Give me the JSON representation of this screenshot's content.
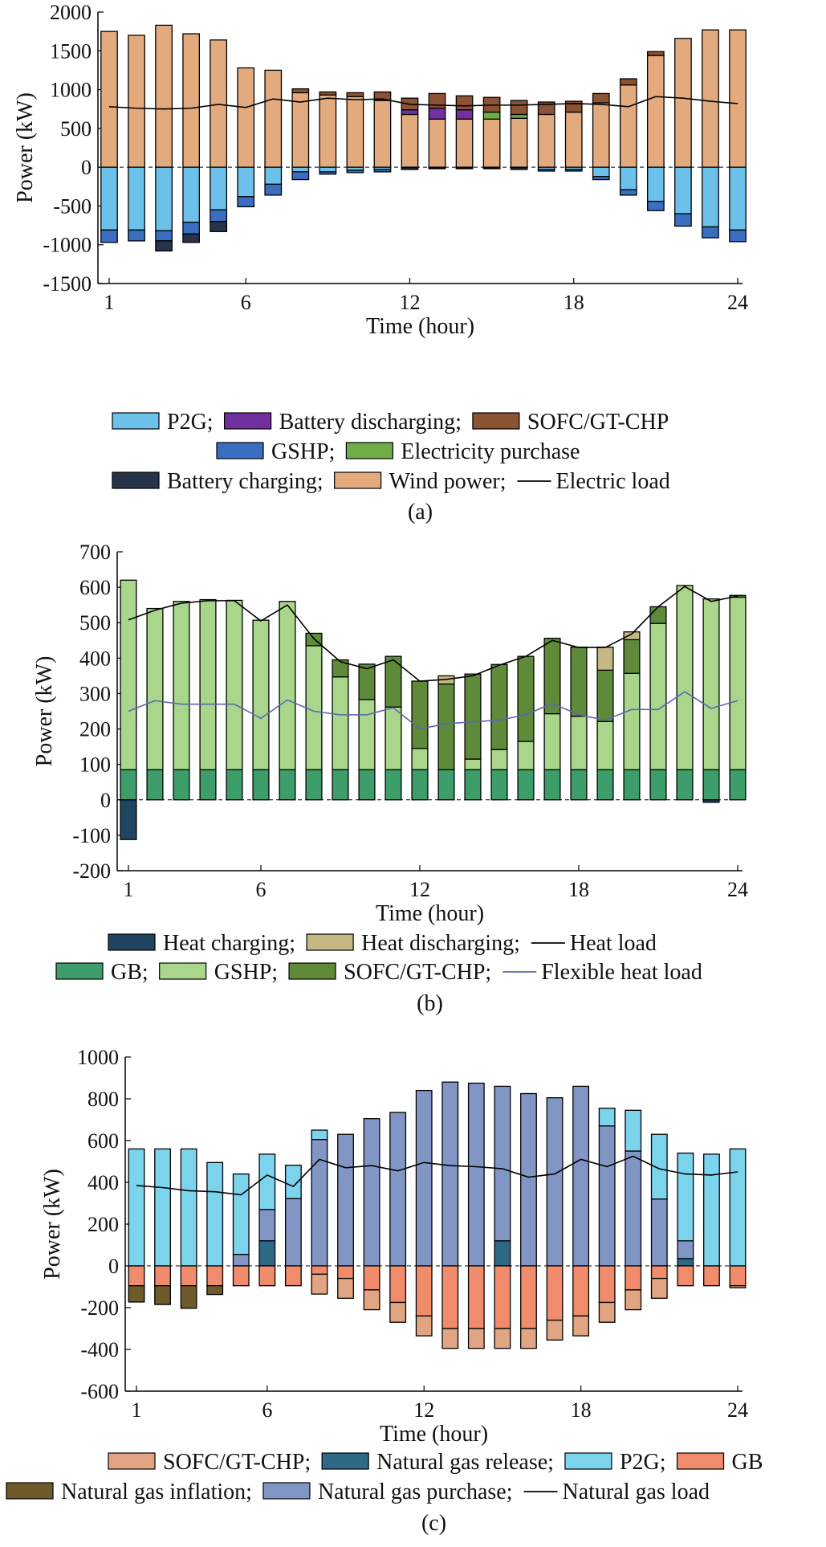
{
  "chart_data": [
    {
      "id": "a",
      "type": "bar",
      "stacked": true,
      "caption": "(a)",
      "xlabel": "Time (hour)",
      "ylabel": "Power (kW)",
      "ylim": [
        -1500,
        2000
      ],
      "yticks": [
        -1500,
        -1000,
        -500,
        0,
        500,
        1000,
        1500,
        2000
      ],
      "xticks": [
        1,
        6,
        12,
        18,
        24
      ],
      "x": [
        1,
        2,
        3,
        4,
        5,
        6,
        7,
        8,
        9,
        10,
        11,
        12,
        13,
        14,
        15,
        16,
        17,
        18,
        19,
        20,
        21,
        22,
        23,
        24
      ],
      "series": [
        {
          "name": "Wind power",
          "color": "#E3AA7D",
          "values": [
            1750,
            1700,
            1830,
            1720,
            1640,
            1280,
            1250,
            960,
            930,
            910,
            860,
            680,
            620,
            620,
            620,
            630,
            680,
            710,
            830,
            1060,
            1440,
            1660,
            1770,
            1770
          ]
        },
        {
          "name": "Electricity purchase",
          "color": "#70AD47",
          "values": [
            0,
            0,
            0,
            0,
            0,
            0,
            0,
            0,
            0,
            0,
            0,
            0,
            0,
            0,
            90,
            50,
            0,
            0,
            0,
            0,
            0,
            0,
            0,
            0
          ]
        },
        {
          "name": "Battery discharging",
          "color": "#7030A0",
          "values": [
            0,
            0,
            0,
            0,
            0,
            0,
            0,
            0,
            0,
            0,
            0,
            60,
            140,
            120,
            0,
            0,
            0,
            0,
            0,
            0,
            0,
            0,
            0,
            0
          ]
        },
        {
          "name": "SOFC/GT-CHP",
          "color": "#8B5233",
          "values": [
            0,
            0,
            0,
            0,
            0,
            0,
            0,
            50,
            40,
            50,
            110,
            150,
            190,
            180,
            190,
            180,
            160,
            140,
            120,
            80,
            50,
            0,
            0,
            0
          ]
        },
        {
          "name": "P2G",
          "color": "#6BC1EA",
          "values": [
            -810,
            -810,
            -820,
            -710,
            -550,
            -380,
            -220,
            -60,
            -60,
            -40,
            -30,
            -10,
            -10,
            -10,
            -10,
            -10,
            -30,
            -30,
            -120,
            -290,
            -440,
            -600,
            -770,
            -810
          ]
        },
        {
          "name": "GSHP",
          "color": "#3A6EC1",
          "values": [
            -160,
            -140,
            -130,
            -150,
            -150,
            -130,
            -140,
            -100,
            -30,
            -30,
            -30,
            -20,
            -10,
            -10,
            -10,
            -20,
            -20,
            -20,
            -40,
            -70,
            -120,
            -160,
            -140,
            -150
          ]
        },
        {
          "name": "Battery charging",
          "color": "#26344A",
          "values": [
            0,
            0,
            -130,
            -110,
            -130,
            0,
            0,
            0,
            0,
            0,
            0,
            0,
            0,
            0,
            0,
            0,
            0,
            0,
            0,
            0,
            0,
            0,
            0,
            0
          ]
        }
      ],
      "line": {
        "name": "Electric load",
        "color": "#000000",
        "values": [
          780,
          760,
          750,
          760,
          810,
          770,
          880,
          840,
          890,
          870,
          880,
          810,
          800,
          790,
          800,
          800,
          810,
          820,
          810,
          780,
          910,
          890,
          850,
          820
        ]
      },
      "legend": [
        [
          "P2G;",
          "Battery discharging;",
          "SOFC/GT-CHP"
        ],
        [
          "GSHP;",
          "Electricity purchase"
        ],
        [
          "Battery charging;",
          "Wind power;",
          "Electric load"
        ]
      ]
    },
    {
      "id": "b",
      "type": "bar",
      "stacked": true,
      "caption": "(b)",
      "xlabel": "Time (hour)",
      "ylabel": "Power (kW)",
      "ylim": [
        -200,
        700
      ],
      "yticks": [
        -200,
        -100,
        0,
        100,
        200,
        300,
        400,
        500,
        600,
        700
      ],
      "xticks": [
        1,
        6,
        12,
        18,
        24
      ],
      "x": [
        1,
        2,
        3,
        4,
        5,
        6,
        7,
        8,
        9,
        10,
        11,
        12,
        13,
        14,
        15,
        16,
        17,
        18,
        19,
        20,
        21,
        22,
        23,
        24
      ],
      "series": [
        {
          "name": "GB",
          "color": "#3E9E6B",
          "values": [
            85,
            85,
            85,
            85,
            85,
            85,
            85,
            85,
            85,
            85,
            85,
            85,
            85,
            85,
            85,
            85,
            85,
            85,
            85,
            85,
            85,
            85,
            85,
            85
          ]
        },
        {
          "name": "GSHP",
          "color": "#A9D68B",
          "values": [
            535,
            455,
            475,
            480,
            478,
            422,
            475,
            350,
            262,
            198,
            177,
            60,
            0,
            30,
            57,
            80,
            158,
            151,
            136,
            272,
            413,
            520,
            482,
            487
          ]
        },
        {
          "name": "SOFC/GT-CHP",
          "color": "#5E8A3A",
          "values": [
            0,
            0,
            0,
            0,
            0,
            0,
            0,
            35,
            48,
            100,
            143,
            190,
            242,
            240,
            240,
            240,
            213,
            195,
            145,
            95,
            47,
            0,
            0,
            5
          ]
        },
        {
          "name": "Heat discharging",
          "color": "#C6B884",
          "values": [
            0,
            0,
            0,
            0,
            0,
            0,
            0,
            0,
            0,
            0,
            0,
            0,
            23,
            0,
            0,
            0,
            0,
            0,
            65,
            22,
            0,
            0,
            0,
            0
          ]
        },
        {
          "name": "Heat charging",
          "color": "#1F4560",
          "values": [
            -112,
            0,
            0,
            0,
            0,
            0,
            0,
            0,
            0,
            0,
            0,
            0,
            0,
            0,
            0,
            0,
            0,
            0,
            0,
            0,
            0,
            0,
            -7,
            0
          ]
        }
      ],
      "line": {
        "name": "Heat load",
        "color": "#000000",
        "values": [
          508,
          535,
          555,
          562,
          562,
          505,
          550,
          455,
          390,
          370,
          395,
          335,
          340,
          350,
          380,
          405,
          450,
          430,
          430,
          468,
          545,
          602,
          560,
          575
        ]
      },
      "line2": {
        "name": "Flexible heat load",
        "color": "#5C67B0",
        "values": [
          250,
          280,
          270,
          270,
          270,
          230,
          282,
          250,
          240,
          240,
          260,
          200,
          215,
          220,
          225,
          240,
          272,
          240,
          225,
          255,
          255,
          305,
          258,
          280
        ]
      },
      "legend": [
        [
          "Heat charging;",
          "Heat discharging;",
          "Heat load"
        ],
        [
          "GB;",
          "GSHP;",
          "SOFC/GT-CHP;",
          "Flexible heat load"
        ]
      ]
    },
    {
      "id": "c",
      "type": "bar",
      "stacked": true,
      "caption": "(c)",
      "xlabel": "Time (hour)",
      "ylabel": "Power (kW)",
      "ylim": [
        -600,
        1000
      ],
      "yticks": [
        -600,
        -400,
        -200,
        0,
        200,
        400,
        600,
        800,
        1000
      ],
      "xticks": [
        1,
        6,
        12,
        18,
        24
      ],
      "x": [
        1,
        2,
        3,
        4,
        5,
        6,
        7,
        8,
        9,
        10,
        11,
        12,
        13,
        14,
        15,
        16,
        17,
        18,
        19,
        20,
        21,
        22,
        23,
        24
      ],
      "series": [
        {
          "name": "Natural gas release",
          "color": "#2E6A86",
          "values": [
            0,
            0,
            0,
            0,
            0,
            120,
            0,
            0,
            0,
            0,
            0,
            0,
            0,
            0,
            120,
            0,
            0,
            0,
            0,
            0,
            0,
            35,
            0,
            0
          ]
        },
        {
          "name": "Natural gas purchase",
          "color": "#8296C6",
          "values": [
            0,
            0,
            0,
            0,
            55,
            150,
            322,
            605,
            630,
            705,
            735,
            840,
            880,
            875,
            740,
            825,
            805,
            860,
            670,
            550,
            320,
            85,
            0,
            0
          ]
        },
        {
          "name": "P2G",
          "color": "#7BD3EC",
          "values": [
            560,
            560,
            560,
            495,
            385,
            265,
            160,
            45,
            0,
            0,
            0,
            0,
            0,
            0,
            0,
            0,
            0,
            0,
            85,
            195,
            310,
            420,
            535,
            560
          ]
        },
        {
          "name": "GB",
          "color": "#F08C6C",
          "values": [
            -95,
            -95,
            -95,
            -95,
            -95,
            -95,
            -95,
            -40,
            -60,
            -115,
            -175,
            -240,
            -300,
            -300,
            -300,
            -300,
            -260,
            -240,
            -175,
            -115,
            -60,
            -95,
            -95,
            -95
          ]
        },
        {
          "name": "SOFC/GT-CHP",
          "color": "#E2A583",
          "values": [
            0,
            0,
            0,
            0,
            0,
            0,
            0,
            -95,
            -95,
            -95,
            -95,
            -95,
            -95,
            -95,
            -95,
            -95,
            -95,
            -95,
            -95,
            -95,
            -95,
            0,
            0,
            -10
          ]
        },
        {
          "name": "Natural gas inflation",
          "color": "#6E5A2A",
          "values": [
            -78,
            -90,
            -108,
            -42,
            0,
            0,
            0,
            0,
            0,
            0,
            0,
            0,
            0,
            0,
            0,
            0,
            0,
            0,
            0,
            0,
            0,
            0,
            0,
            0
          ]
        }
      ],
      "line": {
        "name": "Natural gas load",
        "color": "#000000",
        "values": [
          385,
          375,
          360,
          355,
          340,
          435,
          380,
          510,
          470,
          480,
          455,
          495,
          480,
          475,
          465,
          425,
          440,
          510,
          475,
          525,
          465,
          440,
          435,
          450
        ]
      },
      "legend": [
        [
          "SOFC/GT-CHP;",
          "Natural gas release;",
          "P2G;",
          "GB"
        ],
        [
          "Natural gas inflation;",
          "Natural gas purchase;",
          "Natural gas load"
        ]
      ]
    }
  ]
}
